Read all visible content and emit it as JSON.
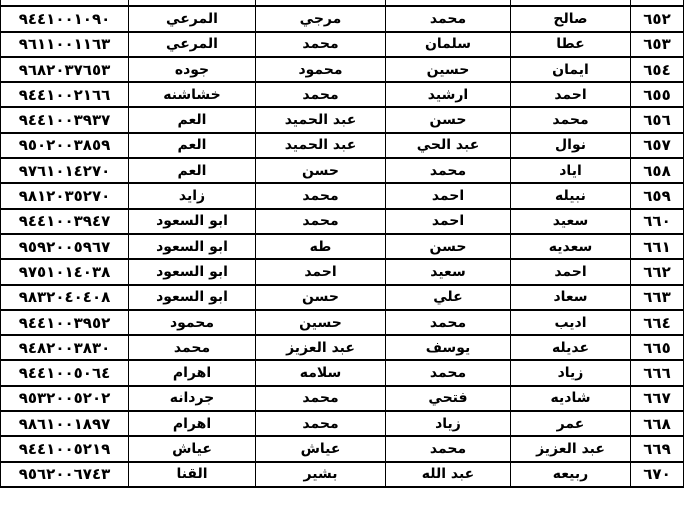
{
  "table": {
    "rows": [
      [
        "",
        "",
        "",
        "",
        "",
        ""
      ],
      [
        "٦٥٢",
        "صالح",
        "محمد",
        "مرجي",
        "المرعي",
        "٩٤٤١٠٠١٠٩٠"
      ],
      [
        "٦٥٣",
        "عطا",
        "سلمان",
        "محمد",
        "المرعي",
        "٩٦١١٠٠١١٦٣"
      ],
      [
        "٦٥٤",
        "ايمان",
        "حسين",
        "محمود",
        "جوده",
        "٩٦٨٢٠٣٧٦٥٣"
      ],
      [
        "٦٥٥",
        "احمد",
        "ارشيد",
        "محمد",
        "خشاشنه",
        "٩٤٤١٠٠٢١٦٦"
      ],
      [
        "٦٥٦",
        "محمد",
        "حسن",
        "عبد الحميد",
        "العم",
        "٩٤٤١٠٠٣٩٣٧"
      ],
      [
        "٦٥٧",
        "نوال",
        "عبد الحي",
        "عبد الحميد",
        "العم",
        "٩٥٠٢٠٠٣٨٥٩"
      ],
      [
        "٦٥٨",
        "اياد",
        "محمد",
        "حسن",
        "العم",
        "٩٧٦١٠١٤٢٧٠"
      ],
      [
        "٦٥٩",
        "نبيله",
        "احمد",
        "محمد",
        "زايد",
        "٩٨١٢٠٣٥٢٧٠"
      ],
      [
        "٦٦٠",
        "سعيد",
        "احمد",
        "محمد",
        "ابو السعود",
        "٩٤٤١٠٠٣٩٤٧"
      ],
      [
        "٦٦١",
        "سعديه",
        "حسن",
        "طه",
        "ابو السعود",
        "٩٥٩٢٠٠٥٩٦٧"
      ],
      [
        "٦٦٢",
        "احمد",
        "سعيد",
        "احمد",
        "ابو السعود",
        "٩٧٥١٠١٤٠٣٨"
      ],
      [
        "٦٦٣",
        "سعاد",
        "علي",
        "حسن",
        "ابو السعود",
        "٩٨٣٢٠٤٠٤٠٨"
      ],
      [
        "٦٦٤",
        "اديب",
        "محمد",
        "حسين",
        "محمود",
        "٩٤٤١٠٠٣٩٥٢"
      ],
      [
        "٦٦٥",
        "عديله",
        "يوسف",
        "عبد العزيز",
        "محمد",
        "٩٤٨٢٠٠٣٨٣٠"
      ],
      [
        "٦٦٦",
        "زياد",
        "محمد",
        "سلامه",
        "اهرام",
        "٩٤٤١٠٠٥٠٦٤"
      ],
      [
        "٦٦٧",
        "شاديه",
        "فتحي",
        "محمد",
        "جردانه",
        "٩٥٣٢٠٠٥٢٠٢"
      ],
      [
        "٦٦٨",
        "عمر",
        "زياد",
        "محمد",
        "اهرام",
        "٩٨٦١٠٠١٨٩٧"
      ],
      [
        "٦٦٩",
        "عبد العزيز",
        "محمد",
        "عياش",
        "عياش",
        "٩٤٤١٠٠٥٢١٩"
      ],
      [
        "٦٧٠",
        "ربيعه",
        "عبد الله",
        "بشير",
        "القنا",
        "٩٥٦٢٠٠٦٧٤٣"
      ]
    ]
  }
}
